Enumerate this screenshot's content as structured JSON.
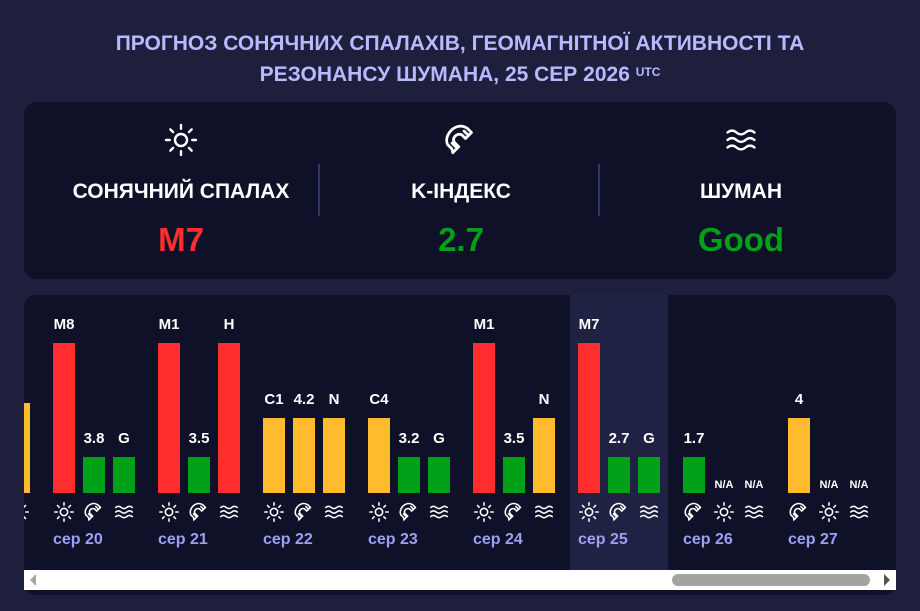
{
  "title": {
    "line1": "ПРОГНОЗ СОНЯЧНИХ СПАЛАХІВ, ГЕОМАГНІТНОЇ АКТИВНОСТІ ТА",
    "line2": "РЕЗОНАНСУ ШУМАНА, 25 СЕР 2026",
    "utc": "UTC"
  },
  "summary": {
    "flare": {
      "label": "СОНЯЧНИЙ СПАЛАХ",
      "value": "M7",
      "color": "#ff2d2d",
      "icon": "sun-icon"
    },
    "kindex": {
      "label": "K-ІНДЕКС",
      "value": "2.7",
      "color": "#00a019",
      "icon": "magnet-icon"
    },
    "schumann": {
      "label": "ШУМАН",
      "value": "Good",
      "color": "#00a019",
      "icon": "waves-icon"
    }
  },
  "colors": {
    "red": "#ff2d2d",
    "yellow": "#fdbb2d",
    "green": "#00a019",
    "date": "#9ba0f5"
  },
  "chart_data": {
    "type": "bar",
    "scale_note": "Flare class, Kp index and Schumann level per day",
    "days": [
      {
        "date": "",
        "bars": [
          {
            "kind": "flare",
            "label": "",
            "level": 0.6,
            "color": "yellow"
          }
        ]
      },
      {
        "date": "сер 20",
        "bars": [
          {
            "kind": "flare",
            "label": "M8",
            "level": 1.0,
            "color": "red"
          },
          {
            "kind": "kindex",
            "label": "3.8",
            "level": 0.24,
            "color": "green"
          },
          {
            "kind": "schumann",
            "label": "G",
            "level": 0.24,
            "color": "green"
          }
        ]
      },
      {
        "date": "сер 21",
        "bars": [
          {
            "kind": "flare",
            "label": "M1",
            "level": 1.0,
            "color": "red"
          },
          {
            "kind": "kindex",
            "label": "3.5",
            "level": 0.24,
            "color": "green"
          },
          {
            "kind": "schumann",
            "label": "H",
            "level": 1.0,
            "color": "red"
          }
        ]
      },
      {
        "date": "сер 22",
        "bars": [
          {
            "kind": "flare",
            "label": "C1",
            "level": 0.5,
            "color": "yellow"
          },
          {
            "kind": "kindex",
            "label": "4.2",
            "level": 0.5,
            "color": "yellow"
          },
          {
            "kind": "schumann",
            "label": "N",
            "level": 0.5,
            "color": "yellow"
          }
        ]
      },
      {
        "date": "сер 23",
        "bars": [
          {
            "kind": "flare",
            "label": "C4",
            "level": 0.5,
            "color": "yellow"
          },
          {
            "kind": "kindex",
            "label": "3.2",
            "level": 0.24,
            "color": "green"
          },
          {
            "kind": "schumann",
            "label": "G",
            "level": 0.24,
            "color": "green"
          }
        ]
      },
      {
        "date": "сер 24",
        "bars": [
          {
            "kind": "flare",
            "label": "M1",
            "level": 1.0,
            "color": "red"
          },
          {
            "kind": "kindex",
            "label": "3.5",
            "level": 0.24,
            "color": "green"
          },
          {
            "kind": "schumann",
            "label": "N",
            "level": 0.5,
            "color": "yellow"
          }
        ]
      },
      {
        "date": "сер 25",
        "today": true,
        "bars": [
          {
            "kind": "flare",
            "label": "M7",
            "level": 1.0,
            "color": "red"
          },
          {
            "kind": "kindex",
            "label": "2.7",
            "level": 0.24,
            "color": "green"
          },
          {
            "kind": "schumann",
            "label": "G",
            "level": 0.24,
            "color": "green"
          }
        ]
      },
      {
        "date": "сер 26",
        "bars": [
          {
            "kind": "kindex",
            "label": "1.7",
            "level": 0.24,
            "color": "green"
          },
          {
            "kind": "flare",
            "label": "N/A",
            "level": 0,
            "color": "none"
          },
          {
            "kind": "schumann",
            "label": "N/A",
            "level": 0,
            "color": "none"
          }
        ]
      },
      {
        "date": "сер 27",
        "bars": [
          {
            "kind": "kindex",
            "label": "4",
            "level": 0.5,
            "color": "yellow"
          },
          {
            "kind": "flare",
            "label": "N/A",
            "level": 0,
            "color": "none"
          },
          {
            "kind": "schumann",
            "label": "N/A",
            "level": 0,
            "color": "none"
          }
        ]
      }
    ]
  }
}
